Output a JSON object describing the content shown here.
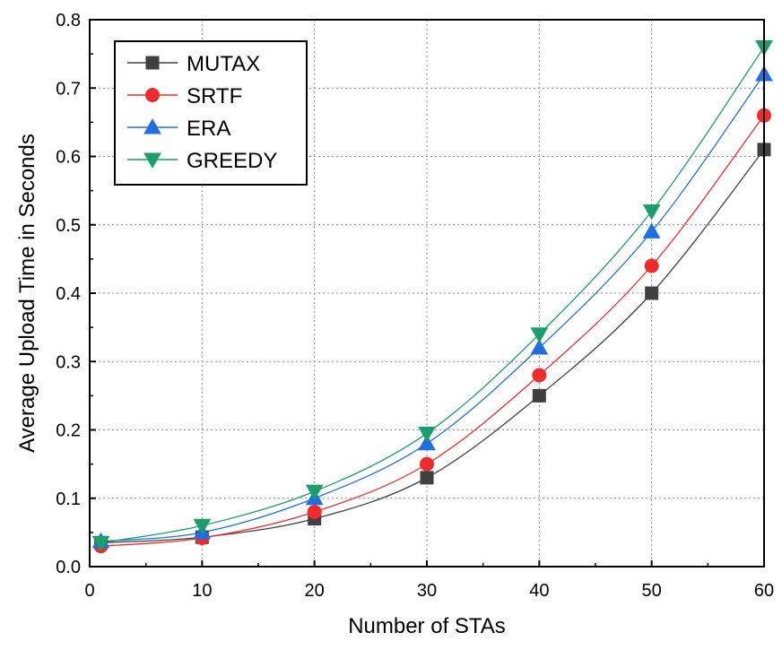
{
  "chart_data": {
    "type": "line",
    "xlabel": "Number of STAs",
    "ylabel": "Average Upload Time in Seconds",
    "xlim": [
      0,
      60
    ],
    "ylim": [
      0,
      0.8
    ],
    "xticks": [
      "0",
      "10",
      "20",
      "30",
      "40",
      "50",
      "60"
    ],
    "yticks": [
      "0.0",
      "0.1",
      "0.2",
      "0.3",
      "0.4",
      "0.5",
      "0.6",
      "0.7",
      "0.8"
    ],
    "grid": true,
    "legend_position": "top-left",
    "x": [
      1,
      10,
      20,
      30,
      40,
      50,
      60
    ],
    "series": [
      {
        "name": "MUTAX",
        "marker": "square",
        "color": "#404040",
        "values": [
          0.035,
          0.043,
          0.07,
          0.13,
          0.25,
          0.4,
          0.61
        ]
      },
      {
        "name": "SRTF",
        "marker": "circle",
        "color": "#ef2b2b",
        "values": [
          0.03,
          0.042,
          0.08,
          0.15,
          0.28,
          0.44,
          0.66
        ]
      },
      {
        "name": "ERA",
        "marker": "triangle-up",
        "color": "#1f6fe0",
        "values": [
          0.037,
          0.05,
          0.1,
          0.18,
          0.32,
          0.49,
          0.72
        ]
      },
      {
        "name": "GREEDY",
        "marker": "triangle-down",
        "color": "#1a9e6a",
        "values": [
          0.035,
          0.06,
          0.11,
          0.195,
          0.34,
          0.52,
          0.76
        ]
      }
    ]
  }
}
